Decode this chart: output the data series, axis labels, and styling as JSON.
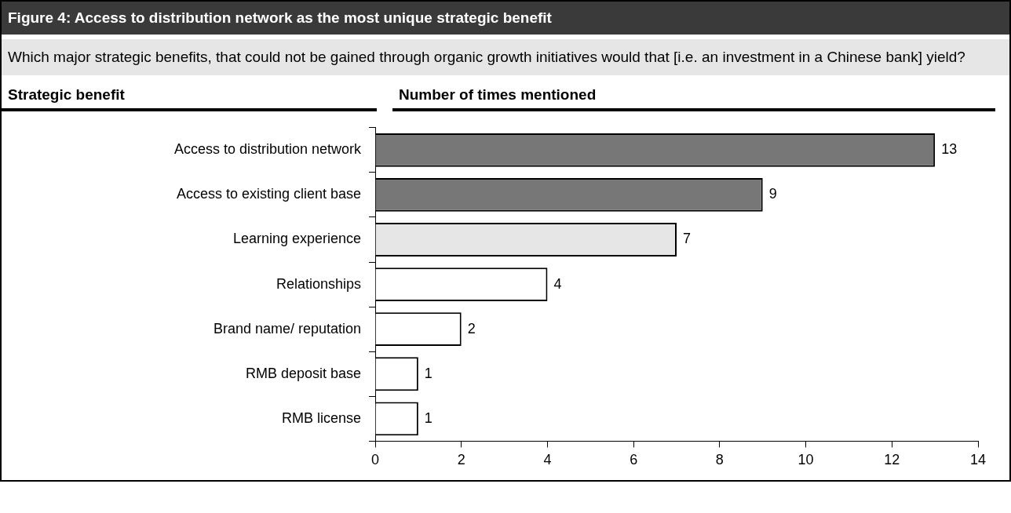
{
  "chart_data": {
    "type": "bar",
    "orientation": "horizontal",
    "title": "Figure 4: Access to distribution network as the most unique strategic benefit",
    "subtitle": "Which major strategic benefits, that could not be gained through organic growth initiatives would that [i.e. an investment in a Chinese bank] yield?",
    "ylabel": "Strategic benefit",
    "xlabel": "Number of times mentioned",
    "categories": [
      "Access to distribution network",
      "Access to existing client base",
      "Learning experience",
      "Relationships",
      "Brand name/ reputation",
      "RMB deposit base",
      "RMB license"
    ],
    "values": [
      13,
      9,
      7,
      4,
      2,
      1,
      1
    ],
    "colors": [
      "#777777",
      "#777777",
      "#e6e6e6",
      "#ffffff",
      "#ffffff",
      "#ffffff",
      "#ffffff"
    ],
    "xlim": [
      0,
      14
    ],
    "xticks": [
      0,
      2,
      4,
      6,
      8,
      10,
      12,
      14
    ],
    "data_labels": true,
    "grid": false,
    "legend": false
  }
}
